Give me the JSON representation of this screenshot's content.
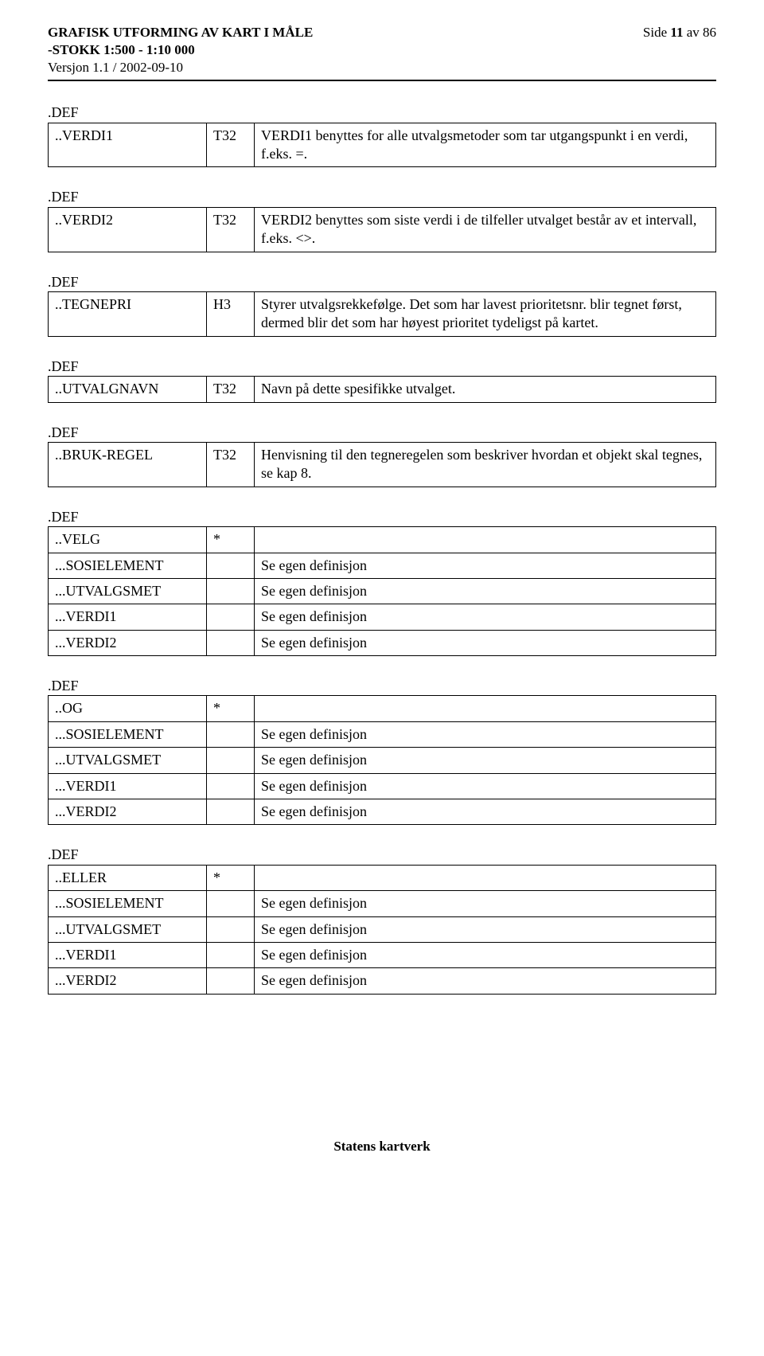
{
  "header": {
    "title_line1": "GRAFISK UTFORMING AV KART I MÅLE",
    "title_line2": "-STOKK 1:500 - 1:10 000",
    "version": "Versjon 1.1 / 2002-09-10",
    "page_label": "Side",
    "page_num": "11",
    "page_sep": "av",
    "page_total": "86"
  },
  "def_label": ".DEF",
  "blocks": [
    {
      "rows": [
        {
          "name": "..VERDI1",
          "type": "T32",
          "desc": "VERDI1 benyttes for  alle utvalgsmetoder som tar utgangspunkt i en verdi, f.eks. =."
        }
      ]
    },
    {
      "rows": [
        {
          "name": "..VERDI2",
          "type": "T32",
          "desc": "VERDI2 benyttes som siste verdi i de tilfeller utvalget består av et intervall, f.eks. <>."
        }
      ]
    },
    {
      "rows": [
        {
          "name": "..TEGNEPRI",
          "type": "H3",
          "desc": "Styrer utvalgsrekkefølge. Det som har lavest prioritetsnr. blir tegnet først, dermed blir det som har høyest prioritet tydeligst på kartet."
        }
      ]
    },
    {
      "rows": [
        {
          "name": "..UTVALGNAVN",
          "type": "T32",
          "desc": "Navn på dette spesifikke utvalget."
        }
      ]
    },
    {
      "rows": [
        {
          "name": "..BRUK-REGEL",
          "type": "T32",
          "desc": "Henvisning til den tegneregelen som beskriver hvordan et objekt skal tegnes, se kap 8."
        }
      ]
    },
    {
      "rows": [
        {
          "name": "..VELG",
          "type": "*",
          "desc": ""
        },
        {
          "name": "...SOSIELEMENT",
          "type": "",
          "desc": "Se egen definisjon"
        },
        {
          "name": "...UTVALGSMET",
          "type": "",
          "desc": "Se egen definisjon"
        },
        {
          "name": "...VERDI1",
          "type": "",
          "desc": "Se egen definisjon"
        },
        {
          "name": "...VERDI2",
          "type": "",
          "desc": "Se egen definisjon"
        }
      ]
    },
    {
      "rows": [
        {
          "name": "..OG",
          "type": "*",
          "desc": ""
        },
        {
          "name": "...SOSIELEMENT",
          "type": "",
          "desc": "Se egen definisjon"
        },
        {
          "name": "...UTVALGSMET",
          "type": "",
          "desc": "Se egen definisjon"
        },
        {
          "name": "...VERDI1",
          "type": "",
          "desc": "Se egen definisjon"
        },
        {
          "name": "...VERDI2",
          "type": "",
          "desc": "Se egen definisjon"
        }
      ]
    },
    {
      "rows": [
        {
          "name": "..ELLER",
          "type": "*",
          "desc": ""
        },
        {
          "name": "...SOSIELEMENT",
          "type": "",
          "desc": "Se egen definisjon"
        },
        {
          "name": "...UTVALGSMET",
          "type": "",
          "desc": "Se egen definisjon"
        },
        {
          "name": "...VERDI1",
          "type": "",
          "desc": "Se egen definisjon"
        },
        {
          "name": "...VERDI2",
          "type": "",
          "desc": "Se egen definisjon"
        }
      ]
    }
  ],
  "footer": "Statens kartverk"
}
